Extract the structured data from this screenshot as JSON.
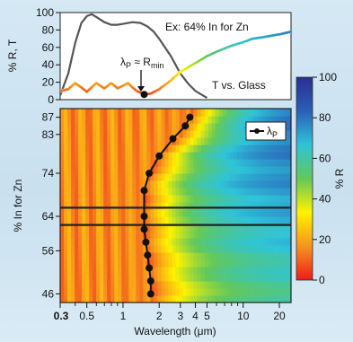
{
  "chart_data": [
    {
      "type": "line",
      "id": "top-spectrum",
      "ylabel": "% R, T",
      "ylim": [
        0,
        100
      ],
      "yticks": [
        0,
        20,
        40,
        60,
        80,
        100
      ],
      "xscale": "log",
      "xlim": [
        0.3,
        25
      ],
      "annotation": "Ex: 64% In for Zn",
      "marker_label": "λP ≈ Rmin",
      "transmission_label": "T vs. Glass",
      "series": [
        {
          "name": "R",
          "x": [
            0.3,
            0.35,
            0.4,
            0.45,
            0.5,
            0.6,
            0.7,
            0.8,
            0.9,
            1.0,
            1.1,
            1.2,
            1.3,
            1.5,
            1.7,
            2.0,
            2.5,
            3.0,
            4.0,
            5.0,
            6.0,
            8.0,
            10.0,
            12.0,
            15.0,
            20.0,
            25.0
          ],
          "values": [
            10,
            12,
            19,
            14,
            9,
            19,
            13,
            19,
            13,
            16,
            19,
            14,
            10,
            6,
            7,
            12,
            22,
            32,
            42,
            50,
            55,
            62,
            66,
            70,
            72,
            75,
            78
          ]
        },
        {
          "name": "T",
          "x": [
            0.3,
            0.35,
            0.4,
            0.45,
            0.5,
            0.55,
            0.6,
            0.7,
            0.8,
            0.9,
            1.0,
            1.2,
            1.4,
            1.6,
            1.8,
            2.0,
            2.5,
            3.0,
            3.5,
            4.0,
            5.0
          ],
          "values": [
            5,
            30,
            65,
            88,
            96,
            98,
            95,
            89,
            86,
            86,
            87,
            89,
            88,
            84,
            78,
            70,
            50,
            30,
            18,
            10,
            2
          ]
        }
      ],
      "rmin_point": {
        "x": 1.5,
        "y": 6
      }
    },
    {
      "type": "heatmap",
      "id": "reflectance-map",
      "xlabel": "Wavelength (μm)",
      "ylabel": "% In for Zn",
      "xscale": "log",
      "xlim": [
        0.3,
        25
      ],
      "xticks": [
        0.3,
        0.5,
        1,
        2,
        3,
        4,
        5,
        10,
        20
      ],
      "xtick_labels": [
        "0.3",
        "0.5",
        "1",
        "2",
        "3",
        "4",
        "5",
        "10",
        "20"
      ],
      "yticks": [
        46,
        56,
        64,
        74,
        83,
        87
      ],
      "ylim": [
        44,
        89
      ],
      "colorbar": {
        "label": "% R",
        "ticks": [
          0,
          20,
          40,
          60,
          80,
          100
        ],
        "tick_labels": [
          "0",
          "20",
          "40",
          "60",
          "80",
          "100"
        ],
        "colors": [
          "#ee1c1c",
          "#f7941d",
          "#fff200",
          "#63c85a",
          "#2ec4d9",
          "#2a5fb8",
          "#2b2f8f"
        ]
      },
      "highlight_rows": [
        66,
        62
      ],
      "legend": "λP",
      "lambda_p": {
        "x": [
          1.7,
          1.7,
          1.65,
          1.6,
          1.55,
          1.5,
          1.5,
          1.5,
          1.65,
          2.0,
          2.6,
          3.3,
          3.6
        ],
        "y": [
          46,
          49,
          52,
          55,
          58,
          61,
          64,
          70,
          74,
          78,
          82,
          85,
          87
        ]
      }
    }
  ]
}
